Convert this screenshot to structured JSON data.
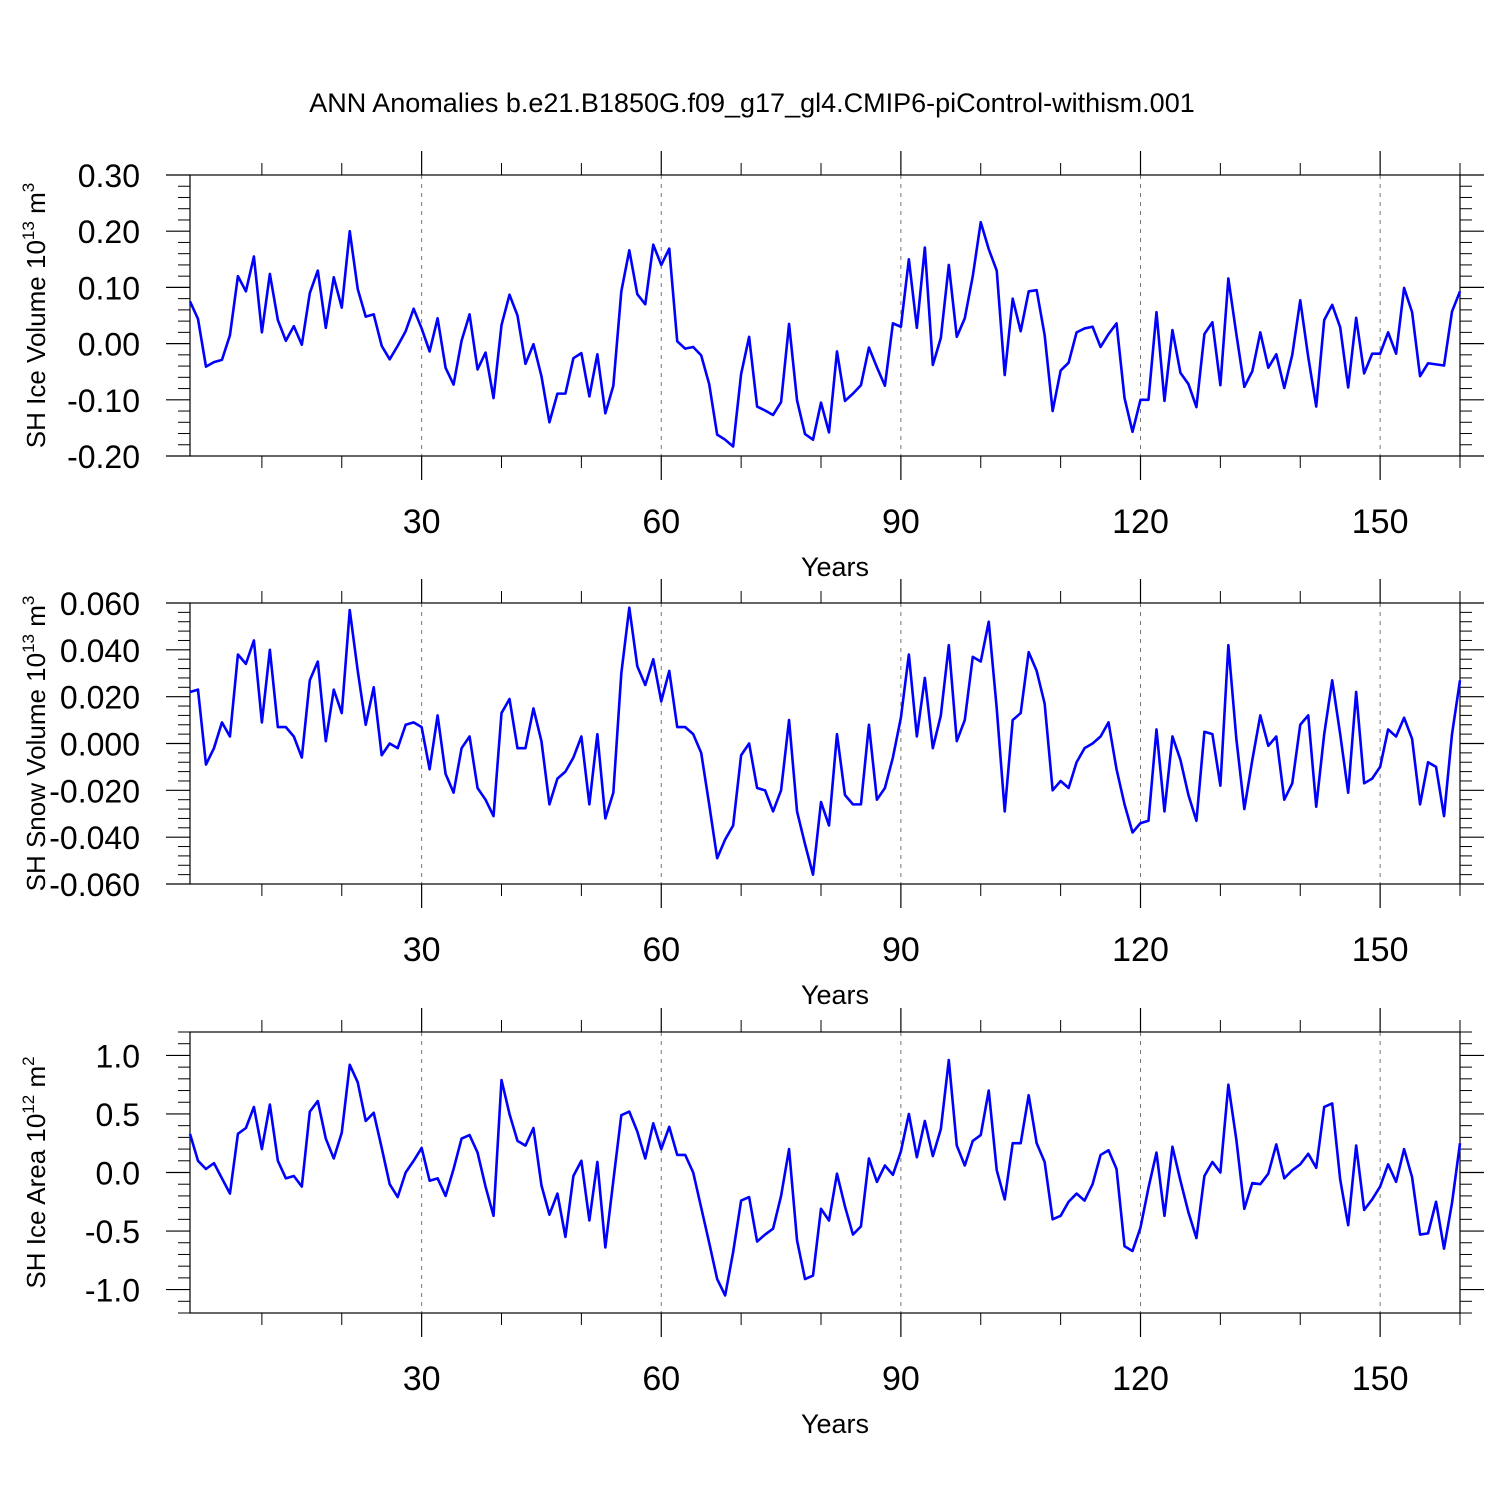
{
  "title": "ANN Anomalies b.e21.B1850G.f09_g17_gl4.CMIP6-piControl-withism.001",
  "chart_data": [
    {
      "type": "line",
      "ylabel": {
        "main": "SH Ice Volume 10",
        "sup": "13",
        "unit": " m",
        "unit_sup": "3"
      },
      "xlabel": "Years",
      "xlim": [
        1,
        160
      ],
      "ylim": [
        -0.2,
        0.3
      ],
      "yticks": [
        -0.2,
        -0.1,
        0.0,
        0.1,
        0.2,
        0.3
      ],
      "ytick_labels": [
        "-0.20",
        "-0.10",
        "0.00",
        "0.10",
        "0.20",
        "0.30"
      ],
      "xticks": [
        30,
        60,
        90,
        120,
        150
      ],
      "xtick_labels": [
        "30",
        "60",
        "90",
        "120",
        "150"
      ],
      "grid_x_dashed": true,
      "color": "#0000ff",
      "series": [
        {
          "x_start": 1,
          "values": [
            0.075,
            0.044,
            -0.041,
            -0.033,
            -0.029,
            0.015,
            0.12,
            0.093,
            0.155,
            0.02,
            0.124,
            0.042,
            0.005,
            0.031,
            -0.002,
            0.09,
            0.13,
            0.028,
            0.118,
            0.064,
            0.2,
            0.097,
            0.048,
            0.052,
            -0.004,
            -0.028,
            -0.004,
            0.022,
            0.062,
            0.027,
            -0.014,
            0.045,
            -0.043,
            -0.073,
            0.005,
            0.052,
            -0.046,
            -0.016,
            -0.097,
            0.033,
            0.087,
            0.05,
            -0.036,
            -0.001,
            -0.058,
            -0.14,
            -0.089,
            -0.089,
            -0.026,
            -0.017,
            -0.094,
            -0.019,
            -0.124,
            -0.075,
            0.093,
            0.166,
            0.088,
            0.07,
            0.176,
            0.14,
            0.169,
            0.004,
            -0.009,
            -0.006,
            -0.021,
            -0.072,
            -0.162,
            -0.171,
            -0.183,
            -0.054,
            0.012,
            -0.112,
            -0.119,
            -0.127,
            -0.104,
            0.035,
            -0.101,
            -0.161,
            -0.171,
            -0.105,
            -0.158,
            -0.014,
            -0.102,
            -0.089,
            -0.074,
            -0.007,
            -0.042,
            -0.075,
            0.036,
            0.03,
            0.15,
            0.028,
            0.171,
            -0.038,
            0.01,
            0.14,
            0.012,
            0.045,
            0.12,
            0.216,
            0.168,
            0.13,
            -0.056,
            0.08,
            0.022,
            0.093,
            0.095,
            0.015,
            -0.12,
            -0.048,
            -0.034,
            0.02,
            0.027,
            0.03,
            -0.006,
            0.017,
            0.036,
            -0.097,
            -0.157,
            -0.1,
            -0.1,
            0.056,
            -0.102,
            0.024,
            -0.052,
            -0.072,
            -0.113,
            0.017,
            0.038,
            -0.074,
            0.116,
            0.017,
            -0.077,
            -0.049,
            0.02,
            -0.043,
            -0.019,
            -0.079,
            -0.02,
            0.077,
            -0.024,
            -0.112,
            0.042,
            0.069,
            0.029,
            -0.078,
            0.046,
            -0.053,
            -0.018,
            -0.018,
            0.02,
            -0.018,
            0.099,
            0.056,
            -0.058,
            -0.035,
            -0.037,
            -0.039,
            0.057,
            0.093
          ]
        }
      ]
    },
    {
      "type": "line",
      "ylabel": {
        "main": "SH Snow Volume 10",
        "sup": "13",
        "unit": " m",
        "unit_sup": "3"
      },
      "xlabel": "Years",
      "xlim": [
        1,
        160
      ],
      "ylim": [
        -0.06,
        0.06
      ],
      "yticks": [
        -0.06,
        -0.04,
        -0.02,
        0.0,
        0.02,
        0.04,
        0.06
      ],
      "ytick_labels": [
        "-0.060",
        "-0.040",
        "-0.020",
        "0.000",
        "0.020",
        "0.040",
        "0.060"
      ],
      "xticks": [
        30,
        60,
        90,
        120,
        150
      ],
      "xtick_labels": [
        "30",
        "60",
        "90",
        "120",
        "150"
      ],
      "grid_x_dashed": true,
      "color": "#0000ff",
      "series": [
        {
          "x_start": 1,
          "values": [
            0.022,
            0.023,
            -0.009,
            -0.002,
            0.009,
            0.003,
            0.038,
            0.034,
            0.044,
            0.009,
            0.04,
            0.007,
            0.007,
            0.003,
            -0.006,
            0.027,
            0.035,
            0.001,
            0.023,
            0.013,
            0.057,
            0.031,
            0.008,
            0.024,
            -0.005,
            0.0,
            -0.002,
            0.008,
            0.009,
            0.007,
            -0.011,
            0.012,
            -0.013,
            -0.021,
            -0.002,
            0.003,
            -0.019,
            -0.024,
            -0.031,
            0.013,
            0.019,
            -0.002,
            -0.002,
            0.015,
            0.001,
            -0.026,
            -0.015,
            -0.012,
            -0.006,
            0.003,
            -0.026,
            0.004,
            -0.032,
            -0.021,
            0.03,
            0.058,
            0.033,
            0.025,
            0.036,
            0.018,
            0.031,
            0.007,
            0.007,
            0.004,
            -0.004,
            -0.026,
            -0.049,
            -0.041,
            -0.035,
            -0.005,
            0.0,
            -0.019,
            -0.02,
            -0.029,
            -0.02,
            0.01,
            -0.029,
            -0.043,
            -0.056,
            -0.025,
            -0.035,
            0.004,
            -0.022,
            -0.026,
            -0.026,
            0.008,
            -0.024,
            -0.019,
            -0.006,
            0.011,
            0.038,
            0.003,
            0.028,
            -0.002,
            0.012,
            0.042,
            0.001,
            0.01,
            0.037,
            0.035,
            0.052,
            0.015,
            -0.029,
            0.01,
            0.013,
            0.039,
            0.031,
            0.017,
            -0.02,
            -0.016,
            -0.019,
            -0.008,
            -0.002,
            0.0,
            0.003,
            0.009,
            -0.011,
            -0.026,
            -0.038,
            -0.034,
            -0.033,
            0.006,
            -0.029,
            0.003,
            -0.007,
            -0.022,
            -0.033,
            0.005,
            0.004,
            -0.018,
            0.042,
            0.002,
            -0.028,
            -0.007,
            0.012,
            -0.001,
            0.003,
            -0.024,
            -0.017,
            0.008,
            0.012,
            -0.027,
            0.004,
            0.027,
            0.004,
            -0.021,
            0.022,
            -0.017,
            -0.015,
            -0.01,
            0.006,
            0.003,
            0.011,
            0.002,
            -0.026,
            -0.008,
            -0.01,
            -0.031,
            0.004,
            0.027
          ]
        }
      ]
    },
    {
      "type": "line",
      "ylabel": {
        "main": "SH Ice Area 10",
        "sup": "12",
        "unit": " m",
        "unit_sup": "2"
      },
      "xlabel": "Years",
      "xlim": [
        1,
        160
      ],
      "ylim": [
        -1.2,
        1.2
      ],
      "yticks": [
        -1.0,
        -0.5,
        0.0,
        0.5,
        1.0
      ],
      "ytick_labels": [
        "-1.0",
        "-0.5",
        "0.0",
        "0.5",
        "1.0"
      ],
      "xticks": [
        30,
        60,
        90,
        120,
        150
      ],
      "xtick_labels": [
        "30",
        "60",
        "90",
        "120",
        "150"
      ],
      "grid_x_dashed": true,
      "color": "#0000ff",
      "series": [
        {
          "x_start": 1,
          "values": [
            0.33,
            0.1,
            0.03,
            0.08,
            -0.05,
            -0.18,
            0.33,
            0.38,
            0.56,
            0.2,
            0.58,
            0.1,
            -0.05,
            -0.03,
            -0.12,
            0.52,
            0.61,
            0.29,
            0.12,
            0.34,
            0.92,
            0.77,
            0.44,
            0.51,
            0.21,
            -0.1,
            -0.21,
            0.0,
            0.1,
            0.21,
            -0.07,
            -0.05,
            -0.2,
            0.03,
            0.29,
            0.32,
            0.17,
            -0.12,
            -0.37,
            0.79,
            0.5,
            0.27,
            0.23,
            0.38,
            -0.11,
            -0.36,
            -0.18,
            -0.55,
            -0.03,
            0.1,
            -0.41,
            0.09,
            -0.64,
            -0.07,
            0.49,
            0.52,
            0.35,
            0.12,
            0.42,
            0.2,
            0.39,
            0.15,
            0.15,
            0.0,
            -0.3,
            -0.6,
            -0.91,
            -1.05,
            -0.68,
            -0.24,
            -0.21,
            -0.59,
            -0.53,
            -0.48,
            -0.2,
            0.2,
            -0.58,
            -0.91,
            -0.88,
            -0.31,
            -0.41,
            -0.01,
            -0.29,
            -0.53,
            -0.46,
            0.12,
            -0.08,
            0.06,
            -0.02,
            0.18,
            0.5,
            0.13,
            0.44,
            0.14,
            0.37,
            0.96,
            0.23,
            0.06,
            0.27,
            0.32,
            0.7,
            0.02,
            -0.23,
            0.25,
            0.25,
            0.66,
            0.25,
            0.09,
            -0.4,
            -0.37,
            -0.25,
            -0.18,
            -0.24,
            -0.1,
            0.15,
            0.19,
            0.03,
            -0.63,
            -0.67,
            -0.47,
            -0.13,
            0.17,
            -0.37,
            0.22,
            -0.07,
            -0.34,
            -0.56,
            -0.03,
            0.09,
            0.0,
            0.75,
            0.28,
            -0.31,
            -0.09,
            -0.1,
            -0.01,
            0.24,
            -0.05,
            0.02,
            0.07,
            0.16,
            0.04,
            0.56,
            0.59,
            -0.06,
            -0.45,
            0.23,
            -0.32,
            -0.23,
            -0.12,
            0.07,
            -0.08,
            0.2,
            -0.04,
            -0.53,
            -0.52,
            -0.25,
            -0.65,
            -0.26,
            0.25
          ]
        }
      ]
    }
  ]
}
